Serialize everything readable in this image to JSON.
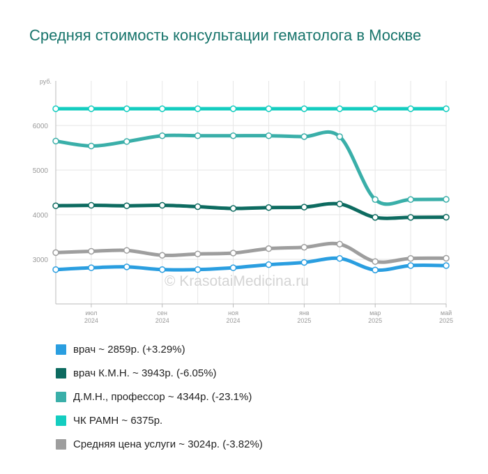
{
  "title": "Средняя стоимость консультации гематолога в Москве",
  "watermark": "© KrasotaiMedicina.ru",
  "colors": {
    "doctor": "#2a9ee0",
    "kmn": "#0d6b60",
    "dmn": "#3aafa9",
    "chk": "#14cdc0",
    "average": "#9e9e9e",
    "grid": "#e6e6e6",
    "axis": "#bbbbbb",
    "tick_text": "#999999",
    "title": "#17746b"
  },
  "chart_data": {
    "type": "line",
    "ylabel": "руб.",
    "ylim": [
      2000,
      7000
    ],
    "yticks": [
      3000,
      4000,
      5000,
      6000
    ],
    "grid": true,
    "legend_position": "bottom",
    "x_count": 12,
    "x_tick_labels": [
      {
        "i": 1,
        "lines": [
          "июл",
          "2024"
        ]
      },
      {
        "i": 3,
        "lines": [
          "сен",
          "2024"
        ]
      },
      {
        "i": 5,
        "lines": [
          "ноя",
          "2024"
        ]
      },
      {
        "i": 7,
        "lines": [
          "янв",
          "2025"
        ]
      },
      {
        "i": 9,
        "lines": [
          "мар",
          "2025"
        ]
      },
      {
        "i": 11,
        "lines": [
          "май",
          "2025"
        ]
      }
    ],
    "series": [
      {
        "key": "chk",
        "name": "ЧК РАМН",
        "legend": "ЧК РАМН ~ 6375р.",
        "values": [
          6375,
          6375,
          6375,
          6375,
          6375,
          6375,
          6375,
          6375,
          6375,
          6375,
          6375,
          6375
        ]
      },
      {
        "key": "dmn",
        "name": "Д.М.Н., профессор",
        "legend": "Д.М.Н., профессор ~ 4344р. (-23.1%)",
        "values": [
          5650,
          5540,
          5640,
          5770,
          5770,
          5770,
          5770,
          5750,
          5750,
          4340,
          4340,
          4344
        ]
      },
      {
        "key": "kmn",
        "name": "врач К.М.Н.",
        "legend": "врач К.М.Н. ~ 3943р. (-6.05%)",
        "values": [
          4200,
          4210,
          4200,
          4210,
          4180,
          4140,
          4160,
          4170,
          4240,
          3940,
          3940,
          3943
        ]
      },
      {
        "key": "average",
        "name": "Средняя цена услуги",
        "legend": "Средняя цена услуги ~ 3024р. (-3.82%)",
        "values": [
          3150,
          3180,
          3200,
          3090,
          3120,
          3140,
          3240,
          3270,
          3340,
          2950,
          3020,
          3024
        ]
      },
      {
        "key": "doctor",
        "name": "врач",
        "legend": "врач ~ 2859р. (+3.29%)",
        "values": [
          2770,
          2810,
          2830,
          2770,
          2770,
          2810,
          2880,
          2930,
          3020,
          2760,
          2860,
          2859
        ]
      }
    ],
    "legend_order": [
      "doctor",
      "kmn",
      "dmn",
      "chk",
      "average"
    ]
  }
}
